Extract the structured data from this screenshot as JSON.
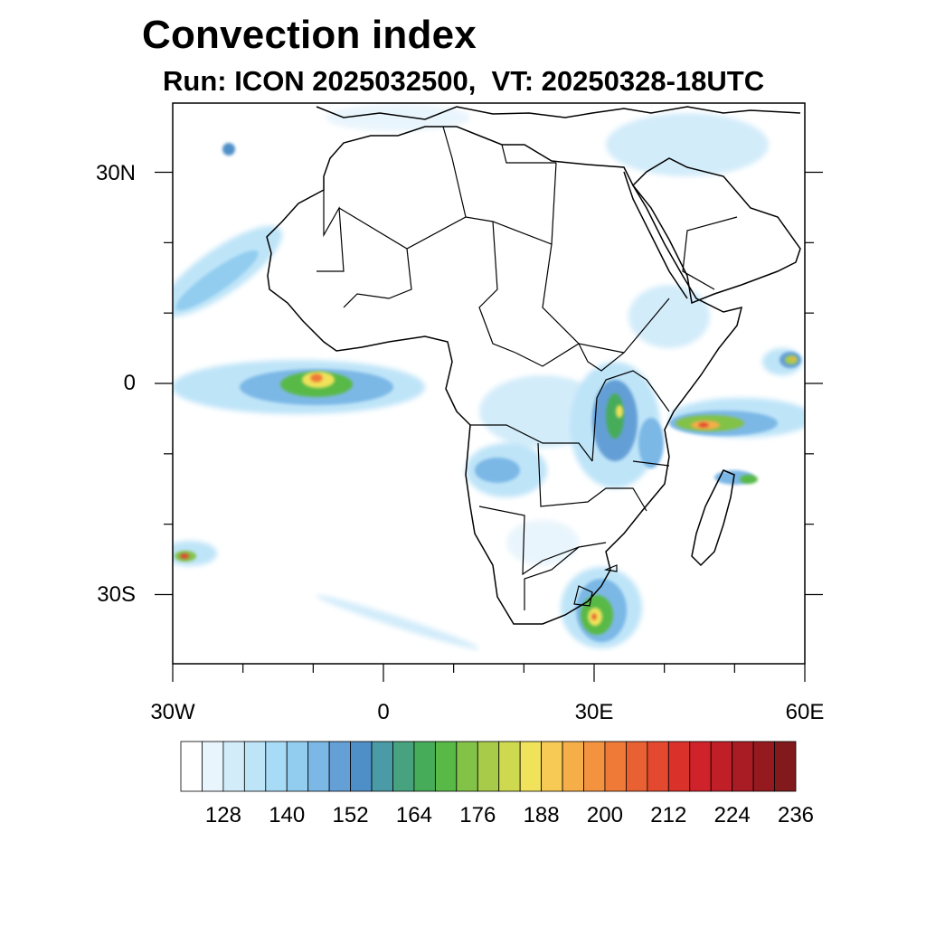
{
  "title": "Convection index",
  "subtitle": "Run: ICON 2025032500,  VT: 20250328-18UTC",
  "map": {
    "region": "Africa",
    "lon_range": [
      -30,
      60
    ],
    "lat_range": [
      -40,
      40
    ],
    "lat_ticks": [
      "30N",
      "0",
      "30S"
    ],
    "lon_ticks": [
      "30W",
      "0",
      "30E",
      "60E"
    ]
  },
  "colorbar": {
    "labels": [
      "128",
      "140",
      "152",
      "164",
      "176",
      "188",
      "200",
      "212",
      "224",
      "236"
    ],
    "colors": [
      "#ffffff",
      "#e9f5fc",
      "#d3ecfa",
      "#bee4f8",
      "#a8dcf6",
      "#92cdef",
      "#7cb8e6",
      "#649fd6",
      "#4f8fc8",
      "#4a9ba6",
      "#47a37f",
      "#47ac5a",
      "#58b947",
      "#82c247",
      "#a8cc4a",
      "#cfd94f",
      "#f0e25a",
      "#f7c955",
      "#f6ae48",
      "#f3933f",
      "#ef7a38",
      "#e96133",
      "#e2492f",
      "#da312b",
      "#cf222a",
      "#c01f28",
      "#aa1c24",
      "#951a1f",
      "#821a1d"
    ]
  },
  "chart_data": {
    "type": "heatmap",
    "title": "Convection index",
    "subtitle": "Run: ICON 2025032500,  VT: 20250328-18UTC",
    "x_range": [
      -30,
      60
    ],
    "y_range": [
      -40,
      40
    ],
    "color_scale_ticks": [
      128,
      140,
      152,
      164,
      176,
      188,
      200,
      212,
      224,
      236
    ],
    "maxima": [
      {
        "lon": -9,
        "lat": 1,
        "value": 212
      },
      {
        "lon": 32,
        "lat": -5,
        "value": 188
      },
      {
        "lon": 45,
        "lat": -6,
        "value": 212
      },
      {
        "lon": 30,
        "lat": -33,
        "value": 212
      },
      {
        "lon": -28,
        "lat": -24,
        "value": 212
      },
      {
        "lon": 58,
        "lat": 3,
        "value": 200
      }
    ]
  }
}
